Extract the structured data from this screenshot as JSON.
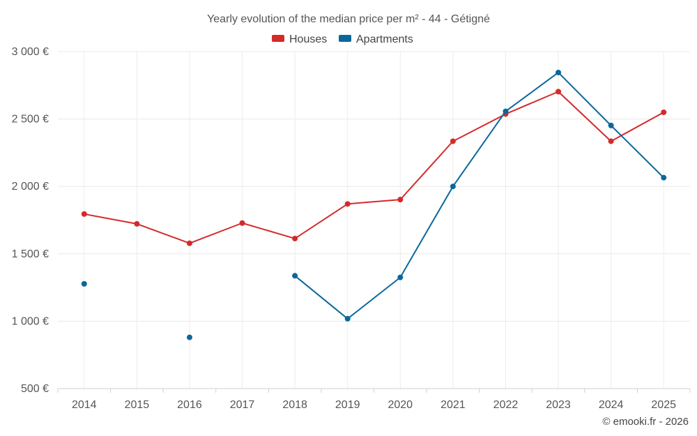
{
  "chart_data": {
    "type": "line",
    "title": "Yearly evolution of the median price per m² - 44 - Gétigné",
    "categories": [
      "2014",
      "2015",
      "2016",
      "2017",
      "2018",
      "2019",
      "2020",
      "2021",
      "2022",
      "2023",
      "2024",
      "2025"
    ],
    "series": [
      {
        "name": "Houses",
        "color": "#d42a2a",
        "values": [
          1795,
          1722,
          1578,
          1728,
          1613,
          1870,
          1902,
          2335,
          2537,
          2703,
          2335,
          2550
        ]
      },
      {
        "name": "Apartments",
        "color": "#0a679c",
        "values": [
          1277,
          null,
          880,
          null,
          1337,
          1018,
          1325,
          2000,
          2557,
          2845,
          2452,
          2065
        ]
      }
    ],
    "y_ticks": [
      {
        "value": 500,
        "label": "500 €"
      },
      {
        "value": 1000,
        "label": "1 000 €"
      },
      {
        "value": 1500,
        "label": "1 500 €"
      },
      {
        "value": 2000,
        "label": "2 000 €"
      },
      {
        "value": 2500,
        "label": "2 500 €"
      },
      {
        "value": 3000,
        "label": "3 000 €"
      }
    ],
    "ylim": [
      500,
      3000
    ],
    "xlabel": "",
    "ylabel": "",
    "grid": true,
    "legend_position": "top-center"
  },
  "credit": "© emooki.fr - 2026"
}
